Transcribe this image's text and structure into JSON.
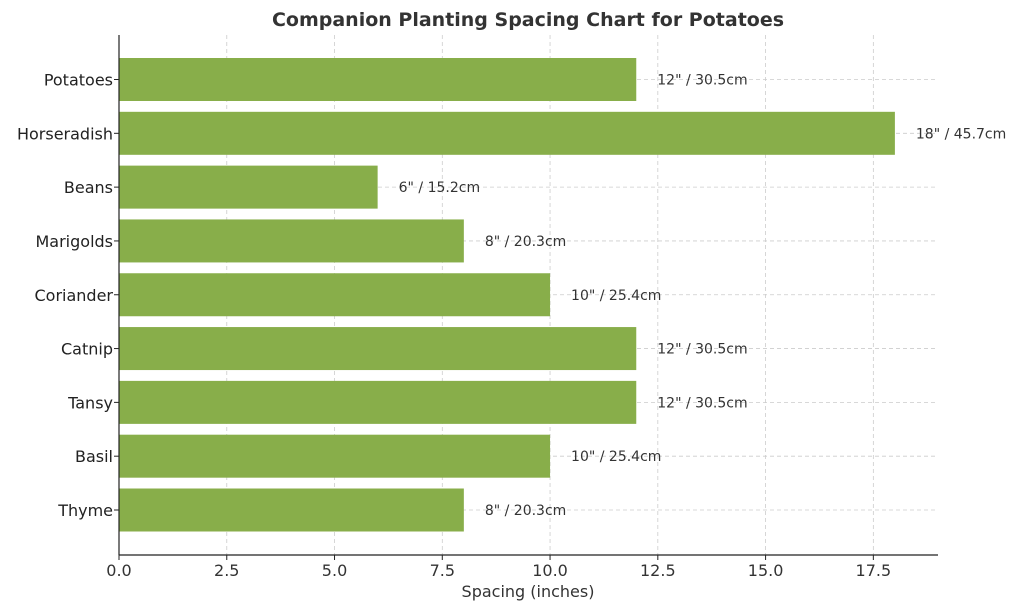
{
  "chart_data": {
    "type": "bar",
    "orientation": "horizontal",
    "title": "Companion Planting Spacing Chart for Potatoes",
    "xlabel": "Spacing (inches)",
    "ylabel": "",
    "xlim": [
      0,
      19
    ],
    "x_ticks": [
      "0.0",
      "2.5",
      "5.0",
      "7.5",
      "10.0",
      "12.5",
      "15.0",
      "17.5"
    ],
    "x_tick_values": [
      0,
      2.5,
      5,
      7.5,
      10,
      12.5,
      15,
      17.5
    ],
    "categories": [
      "Potatoes",
      "Horseradish",
      "Beans",
      "Marigolds",
      "Coriander",
      "Catnip",
      "Tansy",
      "Basil",
      "Thyme"
    ],
    "values": [
      12,
      18,
      6,
      8,
      10,
      12,
      12,
      10,
      8
    ],
    "data_labels": [
      "12\" / 30.5cm",
      "18\" / 45.7cm",
      "6\" / 15.2cm",
      "8\" / 20.3cm",
      "10\" / 25.4cm",
      "12\" / 30.5cm",
      "12\" / 30.5cm",
      "10\" / 25.4cm",
      "8\" / 20.3cm"
    ],
    "bar_color": "#88ae4a",
    "grid": true,
    "legend": false
  }
}
